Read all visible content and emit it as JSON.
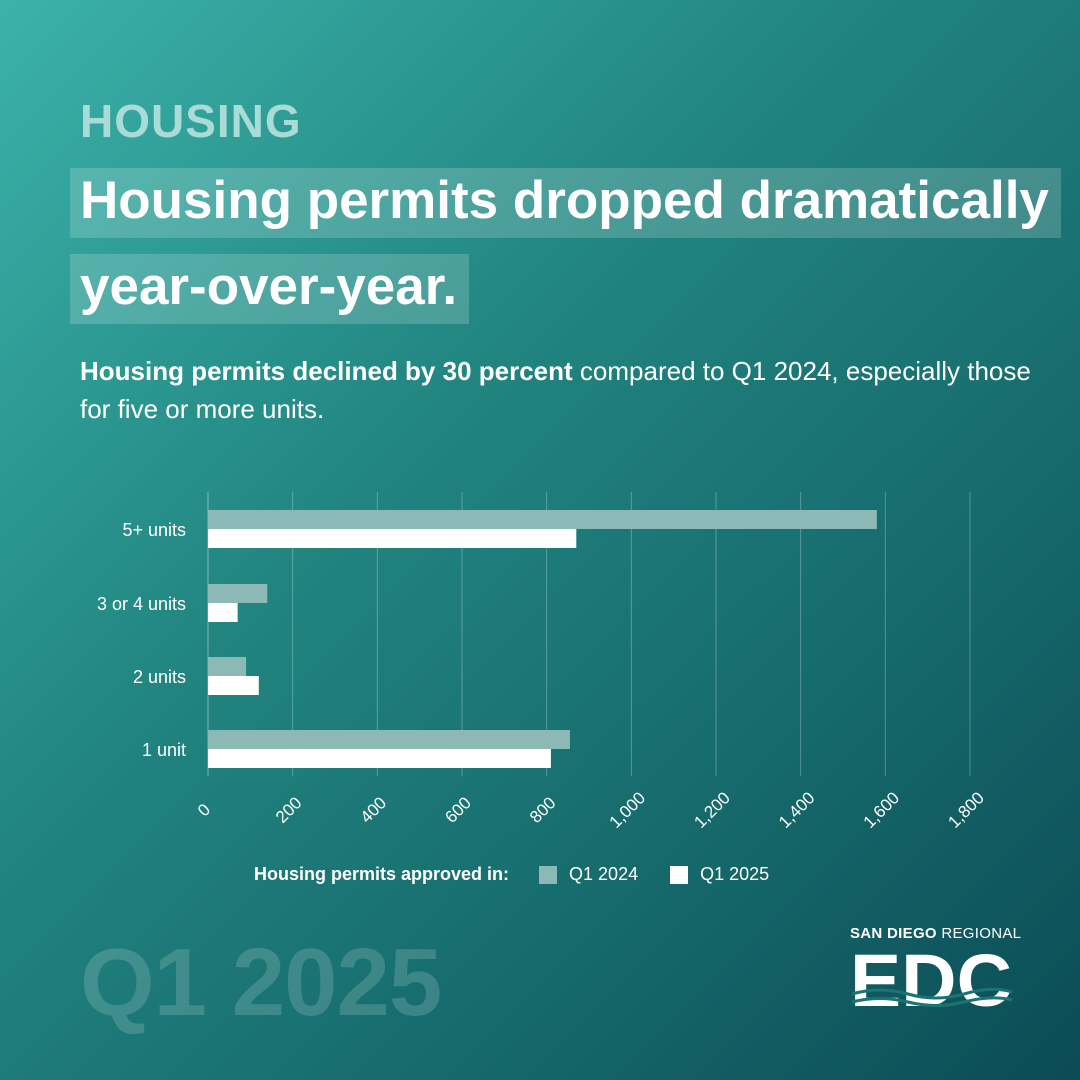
{
  "header": {
    "eyebrow": "HOUSING",
    "headline_line1": "Housing permits dropped dramatically",
    "headline_line2": "year-over-year.",
    "subtitle_bold": "Housing permits declined by 30 percent",
    "subtitle_rest": " compared to Q1 2024, especially those for five or more units."
  },
  "chart_data": {
    "type": "bar",
    "orientation": "horizontal",
    "categories": [
      "5+ units",
      "3 or 4 units",
      "2 units",
      "1 unit"
    ],
    "series": [
      {
        "name": "Q1 2024",
        "values": [
          1580,
          140,
          90,
          855
        ],
        "color": "#8cb9b6"
      },
      {
        "name": "Q1 2025",
        "values": [
          870,
          70,
          120,
          810
        ],
        "color": "#ffffff"
      }
    ],
    "xlim": [
      0,
      1800
    ],
    "xticks": [
      0,
      200,
      400,
      600,
      800,
      1000,
      1200,
      1400,
      1600,
      1800
    ],
    "xtick_labels": [
      "0",
      "200",
      "400",
      "600",
      "800",
      "1,000",
      "1,200",
      "1,400",
      "1,600",
      "1,800"
    ],
    "grid": true,
    "legend_title": "Housing permits approved in:",
    "legend_position": "bottom"
  },
  "legend": {
    "title": "Housing permits approved in:",
    "items": [
      "Q1 2024",
      "Q1 2025"
    ]
  },
  "watermark": "Q1 2025",
  "logo": {
    "org_bold": "SAN DIEGO",
    "org_light": " REGIONAL",
    "mark": "EDC"
  },
  "colors": {
    "bg_start": "#3bb2aa",
    "bg_end": "#0b4b55",
    "series_2024": "#8cb9b6",
    "series_2025": "#ffffff"
  }
}
